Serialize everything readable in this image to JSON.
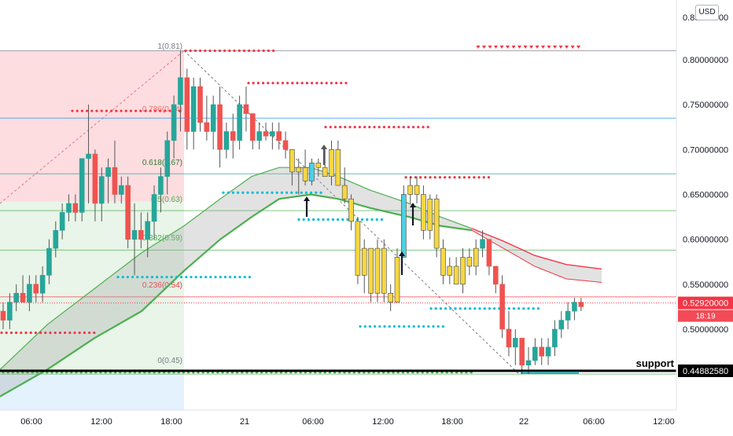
{
  "currency": "USD",
  "chart_data": {
    "type": "candlestick",
    "ylim": [
      0.405,
      0.835
    ],
    "x_ticks": [
      "06:00",
      "12:00",
      "18:00",
      "21",
      "06:00",
      "12:00",
      "18:00",
      "22",
      "06:00",
      "12:00"
    ],
    "y_ticks": [
      "0.80000000",
      "0.75000000",
      "0.70000000",
      "0.65000000",
      "0.60000000",
      "0.55000000",
      "0.50000000"
    ],
    "top_tick_partial": "0.85000000",
    "price_badge": {
      "value": 0.5292,
      "label": "0.52920000",
      "countdown": "18:19",
      "color": "#f23645"
    },
    "support": {
      "value": 0.4488258,
      "label": "0.44882580",
      "text": "support"
    },
    "fib_levels": [
      {
        "label": "1(0.81)",
        "value": 0.81
      },
      {
        "label": "0.786(0.74)",
        "value": 0.74
      },
      {
        "label": "0.618(0.67)",
        "value": 0.67
      },
      {
        "label": "0.5(0.63)",
        "value": 0.63
      },
      {
        "label": "0.382(0.59)",
        "value": 0.59
      },
      {
        "label": "0.236(0.54)",
        "value": 0.54
      },
      {
        "label": "0(0.45)",
        "value": 0.45
      }
    ],
    "horizontal_lines": [
      0.81,
      0.735,
      0.673,
      0.632,
      0.588,
      0.536,
      0.45
    ],
    "candles": [
      [
        0.52,
        0.53,
        0.5,
        0.51
      ],
      [
        0.51,
        0.54,
        0.5,
        0.53
      ],
      [
        0.53,
        0.55,
        0.52,
        0.54
      ],
      [
        0.54,
        0.56,
        0.53,
        0.53
      ],
      [
        0.53,
        0.56,
        0.52,
        0.55
      ],
      [
        0.55,
        0.56,
        0.53,
        0.54
      ],
      [
        0.54,
        0.57,
        0.53,
        0.56
      ],
      [
        0.56,
        0.6,
        0.55,
        0.59
      ],
      [
        0.59,
        0.62,
        0.58,
        0.61
      ],
      [
        0.61,
        0.64,
        0.6,
        0.63
      ],
      [
        0.63,
        0.65,
        0.62,
        0.64
      ],
      [
        0.64,
        0.65,
        0.62,
        0.63
      ],
      [
        0.63,
        0.69,
        0.62,
        0.69
      ],
      [
        0.69,
        0.75,
        0.64,
        0.695
      ],
      [
        0.695,
        0.7,
        0.62,
        0.64
      ],
      [
        0.64,
        0.68,
        0.62,
        0.67
      ],
      [
        0.67,
        0.69,
        0.64,
        0.68
      ],
      [
        0.68,
        0.71,
        0.64,
        0.65
      ],
      [
        0.65,
        0.67,
        0.64,
        0.66
      ],
      [
        0.66,
        0.67,
        0.59,
        0.6
      ],
      [
        0.6,
        0.64,
        0.56,
        0.61
      ],
      [
        0.61,
        0.63,
        0.59,
        0.6
      ],
      [
        0.6,
        0.63,
        0.58,
        0.62
      ],
      [
        0.62,
        0.66,
        0.6,
        0.65
      ],
      [
        0.65,
        0.68,
        0.63,
        0.67
      ],
      [
        0.67,
        0.72,
        0.65,
        0.71
      ],
      [
        0.71,
        0.76,
        0.69,
        0.75
      ],
      [
        0.75,
        0.81,
        0.72,
        0.78
      ],
      [
        0.78,
        0.79,
        0.7,
        0.72
      ],
      [
        0.72,
        0.78,
        0.7,
        0.77
      ],
      [
        0.77,
        0.78,
        0.72,
        0.73
      ],
      [
        0.73,
        0.76,
        0.71,
        0.72
      ],
      [
        0.72,
        0.76,
        0.7,
        0.75
      ],
      [
        0.75,
        0.77,
        0.68,
        0.7
      ],
      [
        0.7,
        0.73,
        0.69,
        0.72
      ],
      [
        0.72,
        0.74,
        0.69,
        0.71
      ],
      [
        0.71,
        0.76,
        0.7,
        0.75
      ],
      [
        0.75,
        0.77,
        0.72,
        0.74
      ],
      [
        0.74,
        0.74,
        0.7,
        0.71
      ],
      [
        0.71,
        0.73,
        0.7,
        0.72
      ],
      [
        0.72,
        0.73,
        0.71,
        0.715
      ],
      [
        0.715,
        0.73,
        0.7,
        0.72
      ],
      [
        0.72,
        0.73,
        0.7,
        0.71
      ],
      [
        0.71,
        0.72,
        0.69,
        0.7
      ],
      [
        0.7,
        0.7,
        0.66,
        0.675
      ],
      [
        0.675,
        0.69,
        0.65,
        0.68
      ],
      [
        0.68,
        0.7,
        0.66,
        0.665
      ],
      [
        0.665,
        0.69,
        0.66,
        0.685
      ],
      [
        0.685,
        0.69,
        0.67,
        0.68
      ],
      [
        0.68,
        0.7,
        0.67,
        0.67
      ],
      [
        0.67,
        0.71,
        0.66,
        0.7
      ],
      [
        0.7,
        0.71,
        0.66,
        0.66
      ],
      [
        0.66,
        0.68,
        0.64,
        0.645
      ],
      [
        0.645,
        0.65,
        0.61,
        0.62
      ],
      [
        0.62,
        0.625,
        0.55,
        0.56
      ],
      [
        0.56,
        0.6,
        0.54,
        0.59
      ],
      [
        0.59,
        0.59,
        0.53,
        0.54
      ],
      [
        0.54,
        0.6,
        0.53,
        0.59
      ],
      [
        0.59,
        0.6,
        0.53,
        0.54
      ],
      [
        0.54,
        0.55,
        0.52,
        0.53
      ],
      [
        0.53,
        0.59,
        0.53,
        0.58
      ],
      [
        0.58,
        0.66,
        0.58,
        0.65
      ],
      [
        0.65,
        0.67,
        0.64,
        0.66
      ],
      [
        0.66,
        0.67,
        0.64,
        0.65
      ],
      [
        0.65,
        0.66,
        0.6,
        0.61
      ],
      [
        0.61,
        0.65,
        0.6,
        0.645
      ],
      [
        0.645,
        0.65,
        0.58,
        0.59
      ],
      [
        0.59,
        0.6,
        0.55,
        0.56
      ],
      [
        0.56,
        0.58,
        0.55,
        0.57
      ],
      [
        0.57,
        0.58,
        0.55,
        0.55
      ],
      [
        0.55,
        0.59,
        0.54,
        0.58
      ],
      [
        0.58,
        0.59,
        0.56,
        0.57
      ],
      [
        0.57,
        0.6,
        0.56,
        0.59
      ],
      [
        0.59,
        0.61,
        0.58,
        0.6
      ],
      [
        0.6,
        0.6,
        0.56,
        0.57
      ],
      [
        0.57,
        0.57,
        0.54,
        0.55
      ],
      [
        0.55,
        0.56,
        0.49,
        0.5
      ],
      [
        0.5,
        0.52,
        0.47,
        0.48
      ],
      [
        0.48,
        0.5,
        0.46,
        0.49
      ],
      [
        0.49,
        0.49,
        0.45,
        0.46
      ],
      [
        0.46,
        0.48,
        0.45,
        0.465
      ],
      [
        0.465,
        0.49,
        0.46,
        0.48
      ],
      [
        0.48,
        0.49,
        0.46,
        0.47
      ],
      [
        0.47,
        0.49,
        0.46,
        0.48
      ],
      [
        0.48,
        0.51,
        0.47,
        0.5
      ],
      [
        0.5,
        0.52,
        0.49,
        0.51
      ],
      [
        0.51,
        0.53,
        0.5,
        0.52
      ],
      [
        0.52,
        0.535,
        0.51,
        0.53
      ],
      [
        0.53,
        0.535,
        0.52,
        0.525
      ]
    ]
  }
}
